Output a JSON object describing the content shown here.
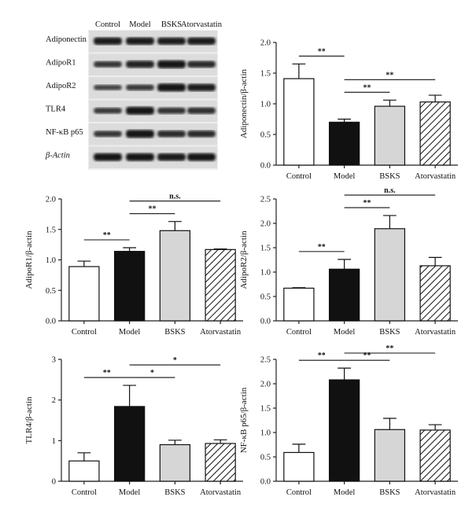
{
  "blot": {
    "columns": [
      "Control",
      "Model",
      "BSKS",
      "Atorvastatin"
    ],
    "rows": [
      "Adiponectin",
      "AdipoR1",
      "AdipoR2",
      "TLR4",
      "NF-κB p65",
      "β-Actin"
    ]
  },
  "chart_data": [
    {
      "type": "bar",
      "id": "adiponectin",
      "ylabel": "Adiponectin/β-actin",
      "categories": [
        "Control",
        "Model",
        "BSKS",
        "Atorvastatin"
      ],
      "values": [
        1.41,
        0.7,
        0.96,
        1.03
      ],
      "errors": [
        0.24,
        0.05,
        0.1,
        0.11
      ],
      "ylim": [
        0,
        2.0
      ],
      "yticks": [
        "0.0",
        "0.5",
        "1.0",
        "1.5",
        "2.0"
      ],
      "significance": [
        {
          "from": 0,
          "to": 1,
          "label": "**"
        },
        {
          "from": 1,
          "to": 2,
          "label": "**"
        },
        {
          "from": 1,
          "to": 3,
          "label": "**"
        }
      ]
    },
    {
      "type": "bar",
      "id": "adipor1",
      "ylabel": "AdipoR1/β-actin",
      "categories": [
        "Control",
        "Model",
        "BSKS",
        "Atorvastatin"
      ],
      "values": [
        0.89,
        1.14,
        1.48,
        1.17
      ],
      "errors": [
        0.09,
        0.06,
        0.15,
        0.01
      ],
      "ylim": [
        0,
        2.0
      ],
      "yticks": [
        "0.0",
        "0.5",
        "1.0",
        "1.5",
        "2.0"
      ],
      "significance": [
        {
          "from": 0,
          "to": 1,
          "label": "**"
        },
        {
          "from": 1,
          "to": 2,
          "label": "**"
        },
        {
          "from": 1,
          "to": 3,
          "label": "n.s."
        }
      ]
    },
    {
      "type": "bar",
      "id": "adipor2",
      "ylabel": "AdipoR2/β-actin",
      "categories": [
        "Control",
        "Model",
        "BSKS",
        "Atorvastatin"
      ],
      "values": [
        0.67,
        1.06,
        1.89,
        1.13
      ],
      "errors": [
        0.01,
        0.2,
        0.27,
        0.17
      ],
      "ylim": [
        0,
        2.5
      ],
      "yticks": [
        "0.0",
        "0.5",
        "1.0",
        "1.5",
        "2.0",
        "2.5"
      ],
      "significance": [
        {
          "from": 0,
          "to": 1,
          "label": "**"
        },
        {
          "from": 1,
          "to": 2,
          "label": "**"
        },
        {
          "from": 1,
          "to": 3,
          "label": "n.s."
        }
      ]
    },
    {
      "type": "bar",
      "id": "tlr4",
      "ylabel": "TLR4/β-actin",
      "categories": [
        "Control",
        "Model",
        "BSKS",
        "Atorvastatin"
      ],
      "values": [
        0.5,
        1.84,
        0.9,
        0.93
      ],
      "errors": [
        0.2,
        0.52,
        0.11,
        0.09
      ],
      "ylim": [
        0,
        3
      ],
      "yticks": [
        "0",
        "1",
        "2",
        "3"
      ],
      "significance": [
        {
          "from": 0,
          "to": 1,
          "label": "**"
        },
        {
          "from": 1,
          "to": 2,
          "label": "*"
        },
        {
          "from": 1,
          "to": 3,
          "label": "*"
        }
      ]
    },
    {
      "type": "bar",
      "id": "nfkb",
      "ylabel": "NF-κB p65/β-actin",
      "categories": [
        "Control",
        "Model",
        "BSKS",
        "Atorvastatin"
      ],
      "values": [
        0.59,
        2.08,
        1.06,
        1.05
      ],
      "errors": [
        0.17,
        0.24,
        0.23,
        0.11
      ],
      "ylim": [
        0,
        2.5
      ],
      "yticks": [
        "0.0",
        "0.5",
        "1.0",
        "1.5",
        "2.0",
        "2.5"
      ],
      "significance": [
        {
          "from": 0,
          "to": 1,
          "label": "**"
        },
        {
          "from": 1,
          "to": 2,
          "label": "**"
        },
        {
          "from": 1,
          "to": 3,
          "label": "**"
        }
      ]
    }
  ],
  "colors": {
    "control": "#ffffff",
    "model": "#111111",
    "bsks": "#d6d6d6",
    "atorvastatin": "hatched",
    "axis": "#222222"
  }
}
